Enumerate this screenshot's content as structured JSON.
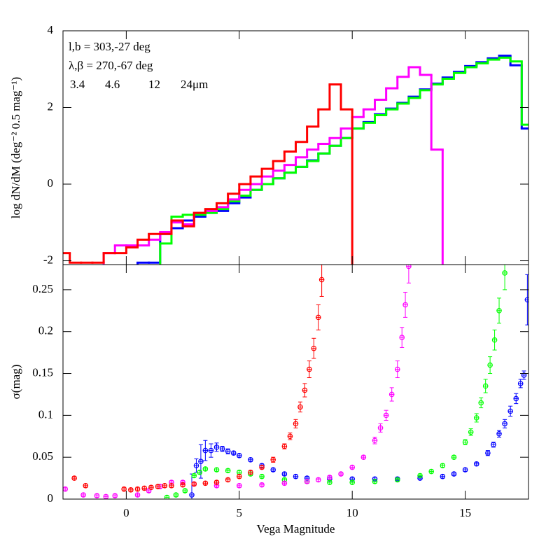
{
  "chart_data": [
    {
      "type": "histogram",
      "ylabel": "log dN/dM (deg⁻² 0.5 mag⁻¹)",
      "annotations": [
        "l,b = 303,-27 deg",
        "λ,β = 270,-67 deg"
      ],
      "xlim": [
        -2.8,
        17.8
      ],
      "ylim": [
        -2.1,
        4
      ],
      "xticks": [
        0,
        5,
        10,
        15
      ],
      "yticks": [
        -2,
        0,
        2,
        4
      ],
      "bins": [
        -3,
        -2.5,
        -2,
        -1.5,
        -1,
        -0.5,
        0,
        0.5,
        1,
        1.5,
        2,
        2.5,
        3,
        3.5,
        4,
        4.5,
        5,
        5.5,
        6,
        6.5,
        7,
        7.5,
        8,
        8.5,
        9,
        9.5,
        10,
        10.5,
        11,
        11.5,
        12,
        12.5,
        13,
        13.5,
        14,
        14.5,
        15,
        15.5,
        16,
        16.5,
        17,
        17.5,
        18
      ],
      "series": [
        {
          "name": "3.4",
          "color": "#0000ff",
          "values": [
            null,
            null,
            null,
            null,
            null,
            null,
            null,
            -2.05,
            -2.05,
            -1.3,
            -1.15,
            -0.95,
            -0.85,
            -0.75,
            -0.7,
            -0.5,
            -0.35,
            -0.15,
            0.0,
            0.15,
            0.3,
            0.45,
            0.62,
            0.8,
            1.0,
            1.2,
            1.45,
            1.62,
            1.82,
            1.97,
            2.12,
            2.28,
            2.47,
            2.62,
            2.78,
            2.93,
            3.08,
            3.18,
            3.28,
            3.35,
            3.1,
            1.45
          ]
        },
        {
          "name": "4.6",
          "color": "#00ff00",
          "values": [
            null,
            null,
            null,
            null,
            null,
            null,
            null,
            null,
            null,
            -1.55,
            -0.85,
            -0.8,
            -0.8,
            -0.75,
            -0.65,
            -0.45,
            -0.3,
            -0.15,
            0.0,
            0.15,
            0.3,
            0.45,
            0.6,
            0.8,
            1.0,
            1.2,
            1.45,
            1.6,
            1.8,
            1.95,
            2.1,
            2.25,
            2.45,
            2.6,
            2.75,
            2.9,
            3.05,
            3.15,
            3.25,
            3.3,
            3.2,
            1.55
          ]
        },
        {
          "name": "12",
          "color": "#ff00ff",
          "values": [
            null,
            null,
            null,
            null,
            -1.8,
            -1.6,
            -1.6,
            -1.6,
            -1.45,
            -1.25,
            -1.0,
            -1.05,
            -0.75,
            -0.7,
            -0.6,
            -0.4,
            -0.15,
            0.0,
            0.2,
            0.35,
            0.5,
            0.7,
            0.9,
            1.05,
            1.2,
            1.45,
            1.75,
            1.95,
            2.2,
            2.5,
            2.8,
            3.05,
            2.85,
            0.9,
            null,
            null,
            null,
            null,
            null,
            null,
            null,
            null
          ]
        },
        {
          "name": "24μm",
          "color": "#ff0000",
          "values": [
            -1.8,
            -2.05,
            -2.05,
            -2.05,
            -1.8,
            -1.8,
            -1.65,
            -1.45,
            -1.3,
            -1.3,
            -0.95,
            -1.1,
            -0.75,
            -0.65,
            -0.5,
            -0.25,
            0.0,
            0.2,
            0.4,
            0.6,
            0.85,
            1.1,
            1.5,
            1.95,
            2.6,
            1.95,
            null,
            null,
            null,
            null,
            null,
            null,
            null,
            null,
            null,
            null,
            null,
            null,
            null,
            null,
            null,
            null
          ]
        }
      ]
    },
    {
      "type": "errorbar",
      "xlabel": "Vega Magnitude",
      "ylabel": "σ(mag)",
      "xlim": [
        -2.8,
        17.8
      ],
      "ylim": [
        0,
        0.28
      ],
      "xticks": [
        0,
        5,
        10,
        15
      ],
      "yticks": [
        0,
        0.05,
        0.1,
        0.15,
        0.2,
        0.25
      ],
      "series": [
        {
          "color": "#0000ff",
          "x": [
            2.9,
            3.1,
            3.3,
            3.5,
            3.75,
            4,
            4.25,
            4.5,
            4.75,
            5,
            5.5,
            6,
            6.5,
            7,
            7.5,
            8,
            9,
            10,
            11,
            12,
            13,
            14,
            14.5,
            15,
            15.5,
            16,
            16.25,
            16.5,
            16.75,
            17,
            17.25,
            17.45,
            17.6,
            17.75
          ],
          "values": [
            0.005,
            0.04,
            0.045,
            0.058,
            0.058,
            0.062,
            0.06,
            0.057,
            0.055,
            0.052,
            0.047,
            0.04,
            0.035,
            0.03,
            0.027,
            0.025,
            0.024,
            0.024,
            0.024,
            0.024,
            0.025,
            0.027,
            0.03,
            0.035,
            0.042,
            0.055,
            0.065,
            0.078,
            0.09,
            0.105,
            0.12,
            0.138,
            0.148,
            0.238
          ],
          "errors": [
            0.025,
            0.008,
            0.02,
            0.012,
            0.008,
            0.005,
            0.003,
            0.003,
            0.002,
            0.002,
            0.002,
            0.002,
            0.002,
            0.002,
            0.002,
            0.002,
            0.002,
            0.002,
            0.002,
            0.002,
            0.002,
            0.002,
            0.002,
            0.002,
            0.002,
            0.003,
            0.003,
            0.004,
            0.005,
            0.006,
            0.006,
            0.005,
            0.005,
            0.03
          ]
        },
        {
          "color": "#00ff00",
          "x": [
            1.8,
            2.2,
            2.6,
            3,
            3.25,
            3.5,
            4,
            4.5,
            5,
            5.5,
            6,
            7,
            8,
            9,
            10,
            11,
            12,
            13,
            13.5,
            14,
            14.5,
            15,
            15.25,
            15.5,
            15.7,
            15.9,
            16.1,
            16.3,
            16.5,
            16.75
          ],
          "values": [
            0.002,
            0.005,
            0.01,
            0.028,
            0.032,
            0.036,
            0.035,
            0.034,
            0.032,
            0.03,
            0.027,
            0.023,
            0.021,
            0.02,
            0.02,
            0.021,
            0.023,
            0.028,
            0.033,
            0.04,
            0.05,
            0.068,
            0.08,
            0.097,
            0.115,
            0.135,
            0.16,
            0.19,
            0.225,
            0.27
          ],
          "errors": [
            0.002,
            0.002,
            0.002,
            0.002,
            0.002,
            0.002,
            0.002,
            0.002,
            0.002,
            0.002,
            0.002,
            0.002,
            0.002,
            0.002,
            0.002,
            0.002,
            0.002,
            0.002,
            0.002,
            0.002,
            0.002,
            0.003,
            0.004,
            0.005,
            0.006,
            0.008,
            0.01,
            0.012,
            0.015,
            0.02
          ]
        },
        {
          "color": "#ff00ff",
          "x": [
            -2.7,
            -1.9,
            -1.3,
            -0.9,
            -0.5,
            0.5,
            1,
            1.5,
            2,
            2.5,
            3,
            4,
            5,
            6,
            7,
            8,
            8.5,
            9,
            9.5,
            10,
            10.5,
            11,
            11.25,
            11.5,
            11.75,
            12,
            12.2,
            12.35,
            12.5
          ],
          "values": [
            0.012,
            0.005,
            0.004,
            0.003,
            0.004,
            0.005,
            0.01,
            0.015,
            0.02,
            0.02,
            0.018,
            0.016,
            0.016,
            0.017,
            0.019,
            0.021,
            0.023,
            0.026,
            0.03,
            0.038,
            0.05,
            0.07,
            0.085,
            0.1,
            0.125,
            0.155,
            0.193,
            0.232,
            0.278
          ],
          "errors": [
            0.002,
            0.002,
            0.002,
            0.002,
            0.002,
            0.002,
            0.002,
            0.002,
            0.002,
            0.002,
            0.002,
            0.002,
            0.002,
            0.002,
            0.002,
            0.002,
            0.002,
            0.002,
            0.002,
            0.002,
            0.002,
            0.004,
            0.005,
            0.006,
            0.008,
            0.01,
            0.012,
            0.015,
            0.02
          ]
        },
        {
          "color": "#ff0000",
          "x": [
            -2.3,
            -1.8,
            -0.1,
            0.2,
            0.5,
            0.8,
            1.1,
            1.4,
            1.7,
            2,
            2.5,
            3,
            3.5,
            4,
            4.5,
            5,
            5.5,
            6,
            6.5,
            7,
            7.25,
            7.5,
            7.7,
            7.9,
            8.1,
            8.3,
            8.5,
            8.65
          ],
          "values": [
            0.025,
            0.016,
            0.012,
            0.011,
            0.012,
            0.013,
            0.014,
            0.015,
            0.016,
            0.016,
            0.017,
            0.018,
            0.019,
            0.02,
            0.023,
            0.027,
            0.032,
            0.038,
            0.047,
            0.063,
            0.075,
            0.09,
            0.11,
            0.13,
            0.155,
            0.18,
            0.217,
            0.262
          ],
          "errors": [
            0.002,
            0.002,
            0.002,
            0.002,
            0.002,
            0.002,
            0.002,
            0.002,
            0.002,
            0.002,
            0.002,
            0.002,
            0.002,
            0.002,
            0.002,
            0.002,
            0.002,
            0.002,
            0.003,
            0.003,
            0.004,
            0.005,
            0.006,
            0.008,
            0.01,
            0.012,
            0.015,
            0.02
          ]
        }
      ]
    }
  ]
}
